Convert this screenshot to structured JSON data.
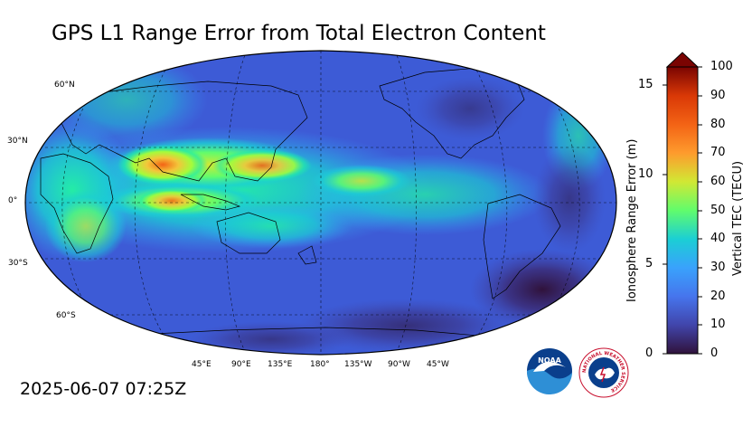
{
  "title": "GPS L1 Range Error from Total Electron Content",
  "timestamp": "2025-06-07 07:25Z",
  "map": {
    "projection": "Robinson",
    "central_longitude": "180°",
    "lat_labels": [
      "60°N",
      "30°N",
      "0°",
      "30°S",
      "60°S"
    ],
    "lon_labels": [
      "45°E",
      "90°E",
      "135°E",
      "180°",
      "135°W",
      "90°W",
      "45°W"
    ],
    "background_color": "#3d5bd6",
    "features": [
      {
        "name": "equatorial anomaly crest north (Asia)",
        "tec_level": "high"
      },
      {
        "name": "equatorial anomaly crest south (Indonesia)",
        "tec_level": "high"
      },
      {
        "name": "south Pacific / Atlantic",
        "tec_level": "low"
      }
    ]
  },
  "colorbar": {
    "left_axis_title": "Ionosphere Range Error (m)",
    "left_ticks": [
      "0",
      "5",
      "10",
      "15"
    ],
    "right_axis_title": "Vertical TEC (TECU)",
    "right_ticks": [
      "0",
      "10",
      "20",
      "30",
      "40",
      "50",
      "60",
      "70",
      "80",
      "90",
      "100"
    ],
    "extend": "max",
    "colors": [
      "#30123b",
      "#4145ab",
      "#4675ed",
      "#39a2fc",
      "#1bcfd4",
      "#24eca6",
      "#61fc6c",
      "#a4fc3b",
      "#d1e834",
      "#f3c63a",
      "#fe9b2d",
      "#f36315",
      "#d93806",
      "#b11901",
      "#7a0402"
    ]
  },
  "logos": {
    "noaa_text": "NOAA",
    "nws_text": "NATIONAL WEATHER SERVICE"
  }
}
